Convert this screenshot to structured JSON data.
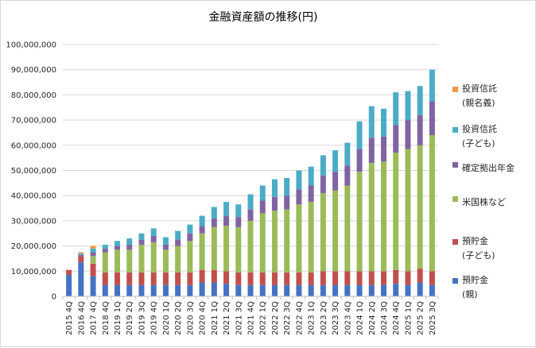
{
  "chart_data": {
    "type": "bar",
    "stacked": true,
    "title": "金融資産額の推移(円)",
    "xlabel": "",
    "ylabel": "",
    "ylim": [
      0,
      100000000
    ],
    "ytick_values": [
      0,
      10000000,
      20000000,
      30000000,
      40000000,
      50000000,
      60000000,
      70000000,
      80000000,
      90000000,
      100000000
    ],
    "ytick_labels": [
      "0",
      "10,000,000",
      "20,000,000",
      "30,000,000",
      "40,000,000",
      "50,000,000",
      "60,000,000",
      "70,000,000",
      "80,000,000",
      "90,000,000",
      "100,000,000"
    ],
    "grid": true,
    "legend_position": "right",
    "categories": [
      "2015 4Q",
      "2016 4Q",
      "2017 4Q",
      "2018 4Q",
      "2019 1Q",
      "2019 2Q",
      "2019 3Q",
      "2019 4Q",
      "2020 1Q",
      "2020 2Q",
      "2020 3Q",
      "2020 4Q",
      "2021 1Q",
      "2021 2Q",
      "2021 3Q",
      "2021 4Q",
      "2022 1Q",
      "2022 2Q",
      "2022 3Q",
      "2022 4Q",
      "2023 1Q",
      "2023 2Q",
      "2023 3Q",
      "2023 4Q",
      "2024 1Q",
      "2024 2Q",
      "2024 3Q",
      "2024 4Q",
      "2025 1Q",
      "2025 2Q",
      "2025 3Q"
    ],
    "series": [
      {
        "name": "預貯金\n(親)",
        "color": "#4472C4",
        "values": [
          8500000,
          13500000,
          8000000,
          4500000,
          4500000,
          4500000,
          4500000,
          4500000,
          4500000,
          4500000,
          4500000,
          5500000,
          5500000,
          5000000,
          4500000,
          4500000,
          4500000,
          4500000,
          4500000,
          4500000,
          4500000,
          4500000,
          4500000,
          4500000,
          4500000,
          4500000,
          4500000,
          5000000,
          4500000,
          5500000,
          4500000
        ]
      },
      {
        "name": "預貯金\n(子ども)",
        "color": "#C0504D",
        "values": [
          2000000,
          2500000,
          5000000,
          5000000,
          5000000,
          5000000,
          5000000,
          5000000,
          5000000,
          5000000,
          5000000,
          5000000,
          5000000,
          5000000,
          5000000,
          5000000,
          5000000,
          5000000,
          5000000,
          5000000,
          5000000,
          5500000,
          5500000,
          5500000,
          5500000,
          5500000,
          5500000,
          5500000,
          5500000,
          5500000,
          5500000
        ]
      },
      {
        "name": "米国株など",
        "color": "#9BBB59",
        "values": [
          0,
          0,
          3000000,
          8000000,
          9000000,
          9000000,
          11000000,
          12000000,
          9000000,
          10500000,
          12500000,
          14500000,
          17000000,
          18000000,
          18000000,
          20500000,
          23500000,
          24500000,
          25000000,
          27000000,
          28000000,
          31000000,
          32000000,
          34000000,
          39500000,
          43000000,
          43500000,
          46500000,
          48500000,
          49000000,
          54000000
        ]
      },
      {
        "name": "確定拠出年金",
        "color": "#8064A2",
        "values": [
          0,
          500000,
          1500000,
          1500000,
          1500000,
          2000000,
          2000000,
          2500000,
          2000000,
          2500000,
          3000000,
          3000000,
          3500000,
          4000000,
          4000000,
          4500000,
          5000000,
          5500000,
          5500000,
          6000000,
          6500000,
          7000000,
          7500000,
          8000000,
          9000000,
          10000000,
          10000000,
          11000000,
          11500000,
          12000000,
          13500000
        ]
      },
      {
        "name": "投資信託\n(子ども)",
        "color": "#4BACC6",
        "values": [
          0,
          500000,
          1500000,
          1500000,
          2000000,
          2500000,
          2500000,
          3000000,
          3000000,
          3500000,
          3500000,
          4000000,
          4500000,
          5500000,
          5000000,
          6000000,
          6000000,
          7000000,
          7000000,
          7500000,
          7500000,
          8000000,
          8500000,
          9000000,
          11000000,
          12500000,
          11000000,
          13000000,
          11500000,
          11500000,
          12500000
        ]
      },
      {
        "name": "投資信託\n(親名義)",
        "color": "#F79646",
        "values": [
          0,
          500000,
          1000000,
          0,
          0,
          0,
          0,
          0,
          0,
          0,
          0,
          0,
          0,
          0,
          0,
          0,
          0,
          0,
          0,
          0,
          0,
          0,
          0,
          0,
          0,
          0,
          0,
          0,
          0,
          0,
          0
        ]
      }
    ]
  }
}
